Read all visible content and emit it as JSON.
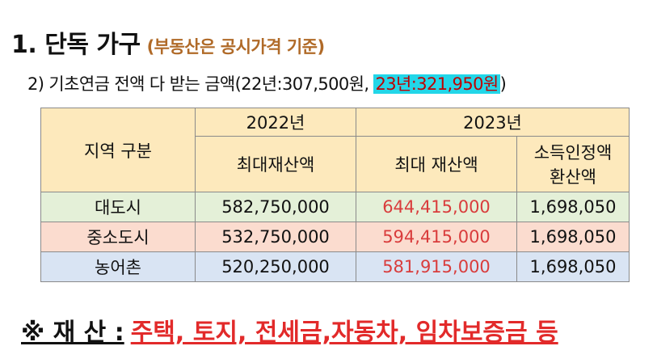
{
  "heading": {
    "title": "1. 단독 가구",
    "subtitle": "(부동산은 공시가격 기준)"
  },
  "subheading": {
    "prefix": "2) 기초연금 전액 다 받는 금액(22년:307,500원, ",
    "highlight": "23년:321,950원",
    "suffix": ")"
  },
  "table": {
    "headers": {
      "region": "지역 구분",
      "year_2022": "2022년",
      "year_2023": "2023년",
      "max_assets_2022": "최대재산액",
      "max_assets_2023": "최대 재산액",
      "income_conversion_line1": "소득인정액",
      "income_conversion_line2": "환산액"
    },
    "rows": [
      {
        "region": "대도시",
        "v2022": "582,750,000",
        "v2023": "644,415,000",
        "income": "1,698,050"
      },
      {
        "region": "중소도시",
        "v2022": "532,750,000",
        "v2023": "594,415,000",
        "income": "1,698,050"
      },
      {
        "region": "농어촌",
        "v2022": "520,250,000",
        "v2023": "581,915,000",
        "income": "1,698,050"
      }
    ]
  },
  "footer": {
    "label": "※ 재 산 :",
    "items": "주택, 토지, 전세금,자동차, 임차보증금 등"
  },
  "colors": {
    "subtitle": "#b06a28",
    "highlight_bg": "#22d6e8",
    "highlight_text": "#c00000",
    "header_bg": "#fde9bc",
    "row_metro_bg": "#e4f0d8",
    "row_mid_bg": "#fbdccf",
    "row_rural_bg": "#d9e4f3",
    "red_values": "#d93c3c"
  }
}
